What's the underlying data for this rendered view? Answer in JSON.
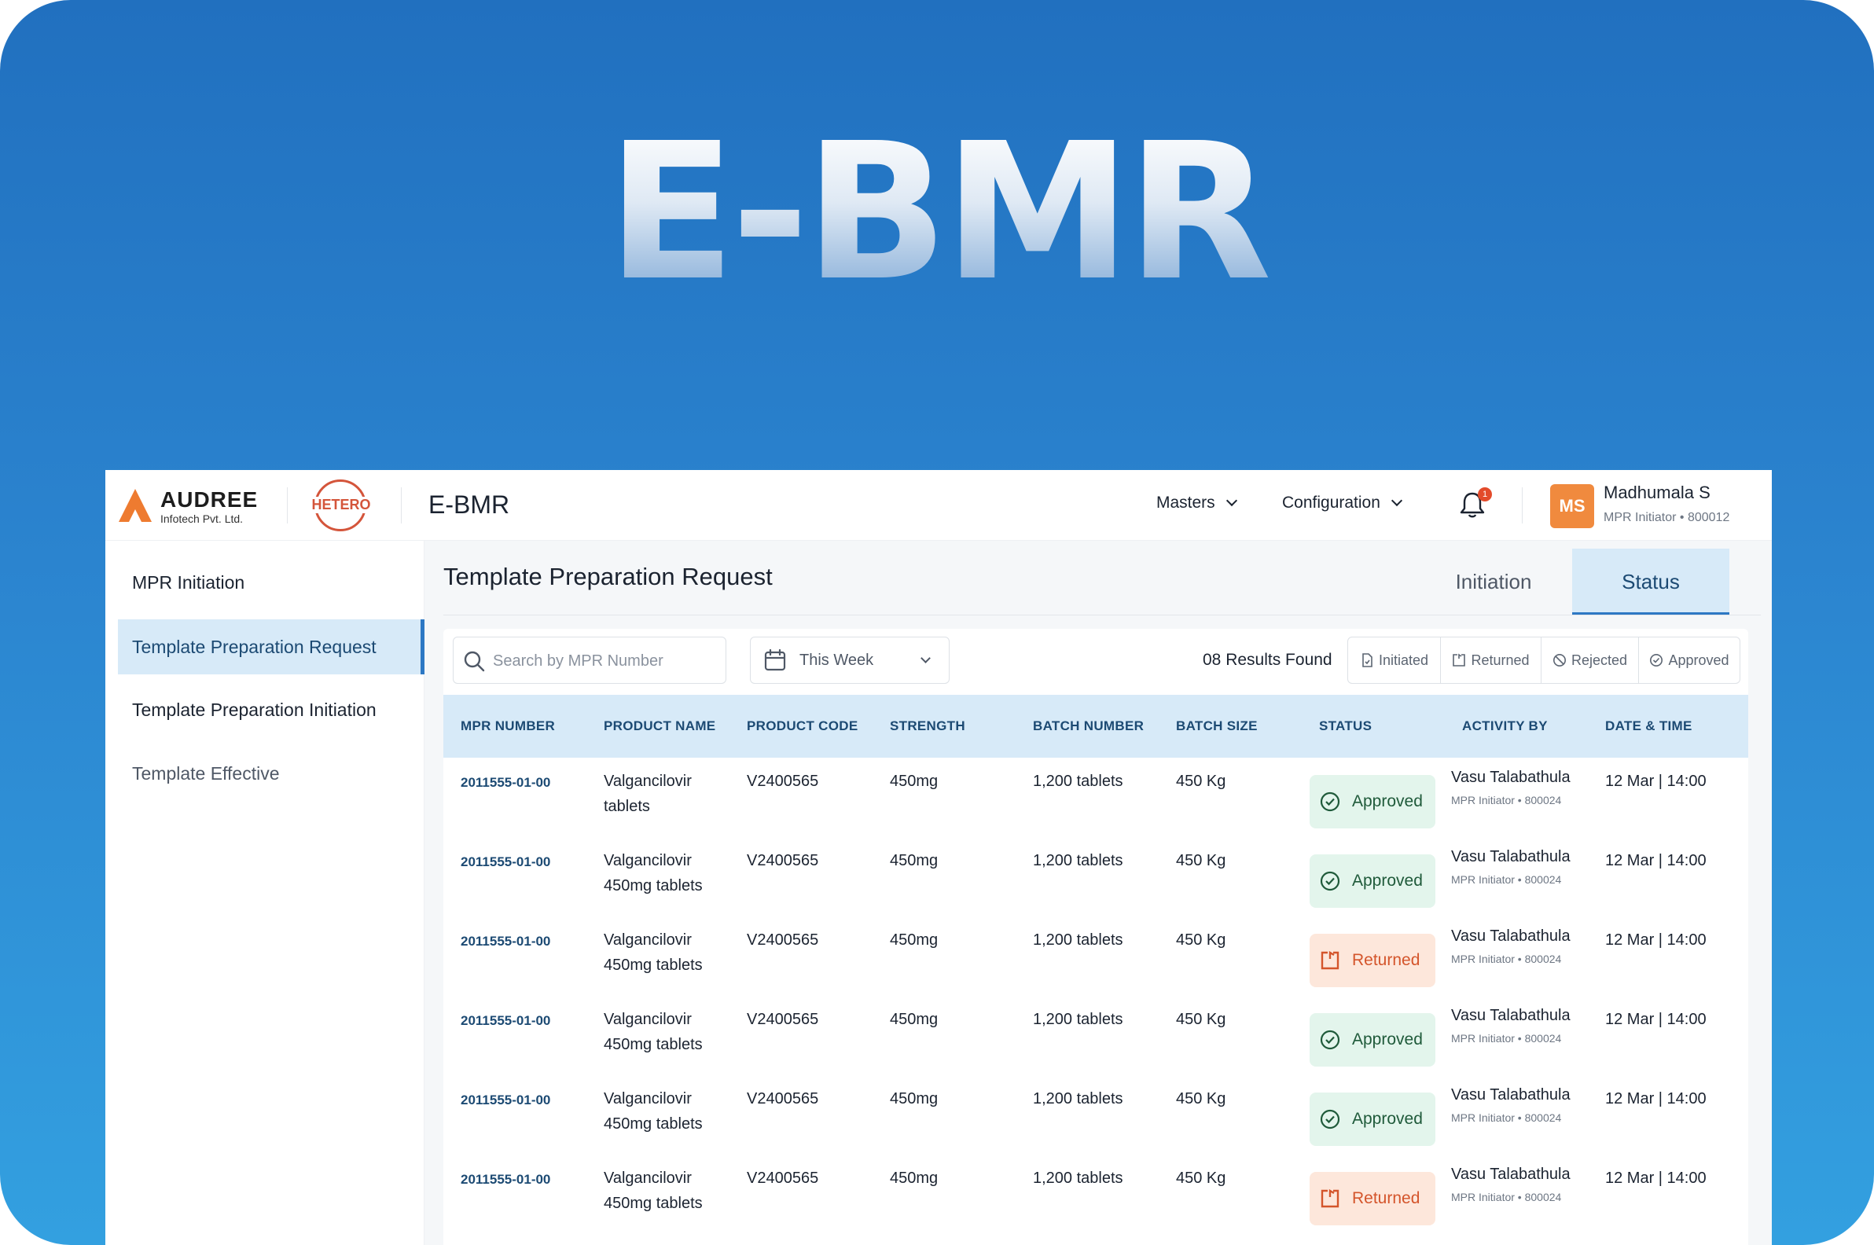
{
  "hero": {
    "title": "E-BMR"
  },
  "header": {
    "company_name": "AUDREE",
    "company_sub": "Infotech Pvt. Ltd.",
    "partner_logo": "HETERO",
    "app_name": "E-BMR",
    "menus": [
      {
        "label": "Masters"
      },
      {
        "label": "Configuration"
      }
    ],
    "notification_count": "1",
    "user": {
      "initials": "MS",
      "name": "Madhumala S",
      "role": "MPR Initiator • 800012"
    }
  },
  "sidebar": {
    "items": [
      {
        "label": "MPR Initiation"
      },
      {
        "label": "Template Preparation Request"
      },
      {
        "label": "Template Preparation Initiation"
      },
      {
        "label": "Template Effective"
      }
    ]
  },
  "main": {
    "title": "Template Preparation Request",
    "tabs": [
      {
        "label": "Initiation"
      },
      {
        "label": "Status"
      }
    ],
    "search_placeholder": "Search by MPR Number",
    "date_filter": "This Week",
    "results_count": "08",
    "results_text": "Results Found",
    "status_filters": [
      {
        "label": "Initiated",
        "icon": "file-icon"
      },
      {
        "label": "Returned",
        "icon": "return-icon"
      },
      {
        "label": "Rejected",
        "icon": "ban-icon"
      },
      {
        "label": "Approved",
        "icon": "check-circle-icon"
      }
    ]
  },
  "table": {
    "columns": [
      "MPR NUMBER",
      "PRODUCT NAME",
      "PRODUCT CODE",
      "STRENGTH",
      "BATCH NUMBER",
      "BATCH SIZE",
      "STATUS",
      "ACTIVITY BY",
      "DATE & TIME"
    ],
    "rows": [
      {
        "mpr": "2011555-01-00",
        "product_line1": "Valgancilovir",
        "product_line2": "tablets",
        "code": "V2400565",
        "strength": "450mg",
        "batch_number": "1,200 tablets",
        "batch_size": "450 Kg",
        "status": "Approved",
        "activity_name": "Vasu Talabathula",
        "activity_role": "MPR Initiator • 800024",
        "datetime": "12 Mar | 14:00"
      },
      {
        "mpr": "2011555-01-00",
        "product_line1": "Valgancilovir",
        "product_line2": "450mg tablets",
        "code": "V2400565",
        "strength": "450mg",
        "batch_number": "1,200 tablets",
        "batch_size": "450 Kg",
        "status": "Approved",
        "activity_name": "Vasu Talabathula",
        "activity_role": "MPR Initiator • 800024",
        "datetime": "12 Mar | 14:00"
      },
      {
        "mpr": "2011555-01-00",
        "product_line1": "Valgancilovir",
        "product_line2": "450mg tablets",
        "code": "V2400565",
        "strength": "450mg",
        "batch_number": "1,200 tablets",
        "batch_size": "450 Kg",
        "status": "Returned",
        "activity_name": "Vasu Talabathula",
        "activity_role": "MPR Initiator • 800024",
        "datetime": "12 Mar | 14:00"
      },
      {
        "mpr": "2011555-01-00",
        "product_line1": "Valgancilovir",
        "product_line2": "450mg tablets",
        "code": "V2400565",
        "strength": "450mg",
        "batch_number": "1,200 tablets",
        "batch_size": "450 Kg",
        "status": "Approved",
        "activity_name": "Vasu Talabathula",
        "activity_role": "MPR Initiator • 800024",
        "datetime": "12 Mar | 14:00"
      },
      {
        "mpr": "2011555-01-00",
        "product_line1": "Valgancilovir",
        "product_line2": "450mg tablets",
        "code": "V2400565",
        "strength": "450mg",
        "batch_number": "1,200 tablets",
        "batch_size": "450 Kg",
        "status": "Approved",
        "activity_name": "Vasu Talabathula",
        "activity_role": "MPR Initiator • 800024",
        "datetime": "12 Mar | 14:00"
      },
      {
        "mpr": "2011555-01-00",
        "product_line1": "Valgancilovir",
        "product_line2": "450mg tablets",
        "code": "V2400565",
        "strength": "450mg",
        "batch_number": "1,200 tablets",
        "batch_size": "450 Kg",
        "status": "Returned",
        "activity_name": "Vasu Talabathula",
        "activity_role": "MPR Initiator • 800024",
        "datetime": "12 Mar | 14:00"
      }
    ]
  },
  "colors": {
    "accent": "#2d78c4",
    "header_row": "#d7eaf8",
    "approved_bg": "#e3f5ec",
    "returned_bg": "#fde7db",
    "avatar": "#f08a3e"
  }
}
